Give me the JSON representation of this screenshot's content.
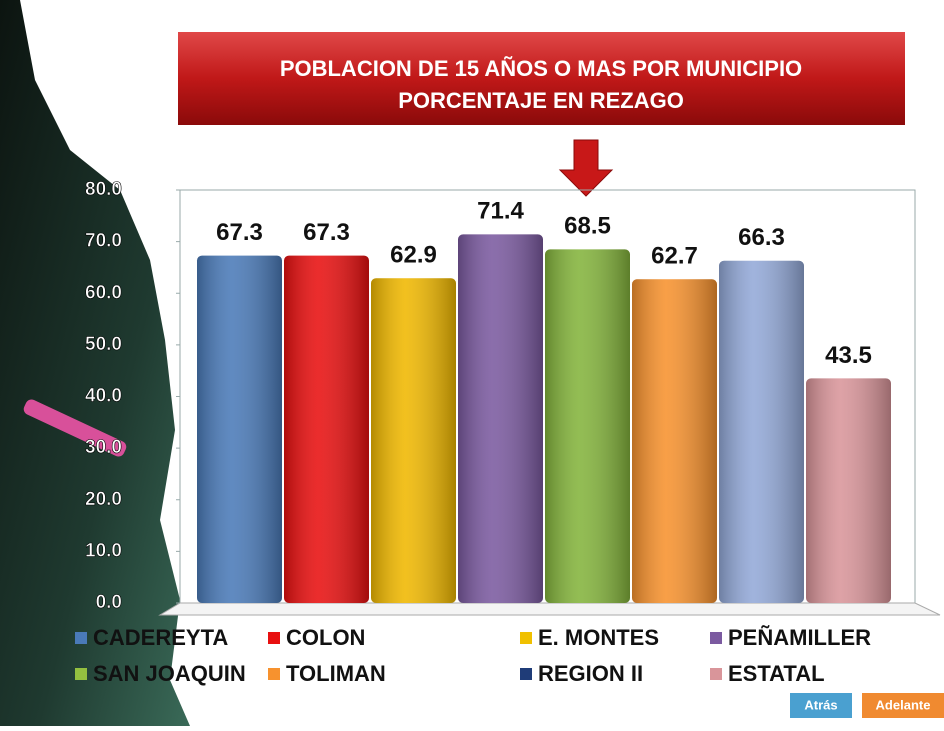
{
  "chart_data": {
    "type": "bar",
    "title": "POBLACION DE 15 AÑOS O MAS POR MUNICIPIO",
    "subtitle": "PORCENTAJE EN REZAGO",
    "categories": [
      "CADEREYTA",
      "COLON",
      "E. MONTES",
      "PEÑAMILLER",
      "SAN JOAQUIN",
      "TOLIMAN",
      "REGION II",
      "ESTATAL"
    ],
    "values": [
      67.3,
      67.3,
      62.9,
      71.4,
      68.5,
      62.7,
      66.3,
      43.5
    ],
    "colors": [
      "#4a7ab8",
      "#e81010",
      "#f0b800",
      "#7b5aa0",
      "#84b43c",
      "#f7922e",
      "#93a9d8",
      "#d9959a"
    ],
    "legend_colors": [
      "#4a7ab8",
      "#e81010",
      "#f0c000",
      "#7b5aa0",
      "#94c040",
      "#f7922e",
      "#1f3c78",
      "#d9959a"
    ],
    "ylim": [
      0,
      80
    ],
    "yticks": [
      {
        "value": 0,
        "label": "0.0"
      },
      {
        "value": 10,
        "label": "10.0"
      },
      {
        "value": 20,
        "label": "20.0"
      },
      {
        "value": 30,
        "label": "30.0"
      },
      {
        "value": 40,
        "label": "40.0"
      },
      {
        "value": 50,
        "label": "50.0"
      },
      {
        "value": 60,
        "label": "60.0"
      },
      {
        "value": 70,
        "label": "70.0"
      },
      {
        "value": 80,
        "label": "80.0"
      }
    ],
    "legend": "bottom"
  },
  "buttons": [
    "Atrás",
    "Adelante"
  ]
}
